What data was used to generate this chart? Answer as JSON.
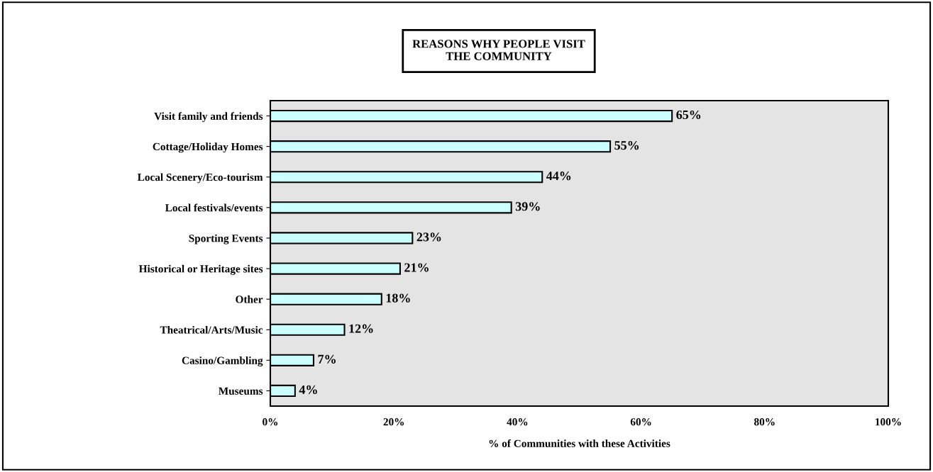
{
  "chart_data": {
    "type": "bar",
    "orientation": "horizontal",
    "title": "REASONS WHY PEOPLE VISIT\nTHE COMMUNITY",
    "xlabel": "% of Communities with these Activities",
    "categories": [
      "Visit family and friends",
      "Cottage/Holiday Homes",
      "Local Scenery/Eco-tourism",
      "Local festivals/events",
      "Sporting Events",
      "Historical or Heritage sites",
      "Other",
      "Theatrical/Arts/Music",
      "Casino/Gambling",
      "Museums"
    ],
    "values": [
      65,
      55,
      44,
      39,
      23,
      21,
      18,
      12,
      7,
      4
    ],
    "value_labels": [
      "65%",
      "55%",
      "44%",
      "39%",
      "23%",
      "21%",
      "18%",
      "12%",
      "7%",
      "4%"
    ],
    "color": "#ccffff",
    "xlim": [
      0,
      100
    ],
    "xticks": [
      {
        "value": 0,
        "label": "0%"
      },
      {
        "value": 20,
        "label": "20%"
      },
      {
        "value": 40,
        "label": "40%"
      },
      {
        "value": 60,
        "label": "60%"
      },
      {
        "value": 80,
        "label": "80%"
      },
      {
        "value": 100,
        "label": "100%"
      }
    ],
    "grid": false,
    "legend": false
  }
}
